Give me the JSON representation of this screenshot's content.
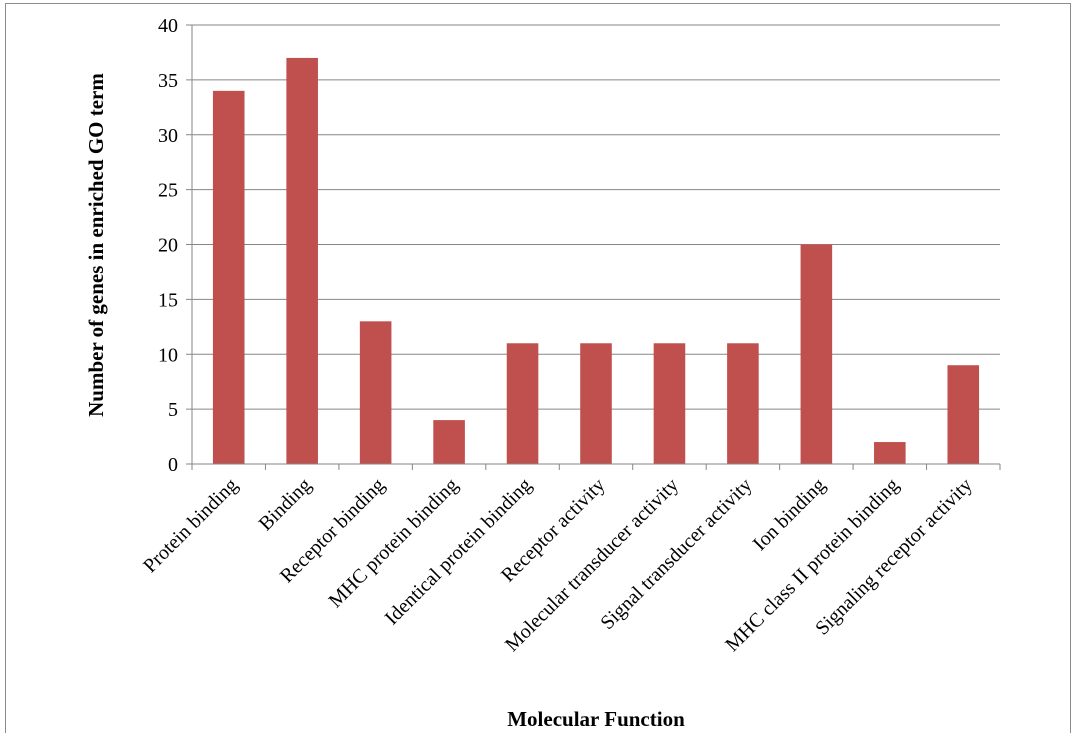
{
  "chart_data": {
    "type": "bar",
    "title": "",
    "xlabel": "Molecular Function",
    "ylabel": "Number of genes in enriched GO term",
    "categories": [
      "Protein binding",
      "Binding",
      "Receptor binding",
      "MHC protein binding",
      "Identical protein binding",
      "Receptor activity",
      "Molecular transducer activity",
      "Signal transducer activity",
      "Ion binding",
      "MHC class II protein binding",
      "Signaling receptor activity"
    ],
    "values": [
      34,
      37,
      13,
      4,
      11,
      11,
      11,
      11,
      20,
      2,
      9
    ],
    "ylim": [
      0,
      40
    ],
    "yticks": [
      0,
      5,
      10,
      15,
      20,
      25,
      30,
      35,
      40
    ],
    "grid": true,
    "legend": "none",
    "colors": {
      "bar": "#c0504d",
      "grid": "#868686",
      "axis": "#868686"
    }
  }
}
